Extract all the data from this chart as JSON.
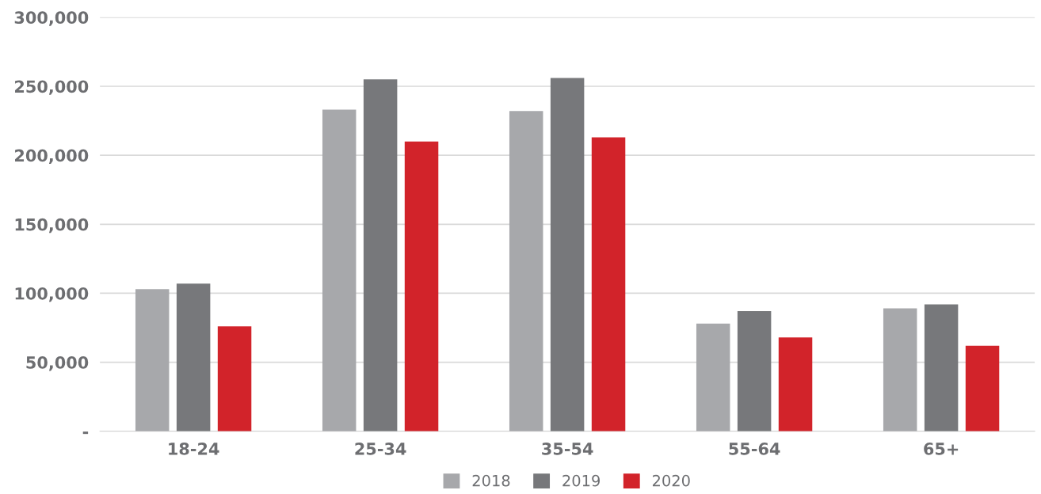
{
  "chart_data": {
    "type": "bar",
    "categories": [
      "18-24",
      "25-34",
      "35-54",
      "55-64",
      "65+"
    ],
    "series": [
      {
        "name": "2018",
        "color": "#a7a8ab",
        "values": [
          103000,
          233000,
          232000,
          78000,
          89000
        ]
      },
      {
        "name": "2019",
        "color": "#77787b",
        "values": [
          107000,
          255000,
          256000,
          87000,
          92000
        ]
      },
      {
        "name": "2020",
        "color": "#d2232a",
        "values": [
          76000,
          210000,
          213000,
          68000,
          62000
        ]
      }
    ],
    "ylim": [
      0,
      300000
    ],
    "yticks": [
      {
        "value": 0,
        "label": "-"
      },
      {
        "value": 50000,
        "label": "50,000"
      },
      {
        "value": 100000,
        "label": "100,000"
      },
      {
        "value": 150000,
        "label": "150,000"
      },
      {
        "value": 200000,
        "label": "200,000"
      },
      {
        "value": 250000,
        "label": "250,000"
      },
      {
        "value": 300000,
        "label": "300,000"
      }
    ],
    "grid": "y",
    "legend": "bottom"
  }
}
